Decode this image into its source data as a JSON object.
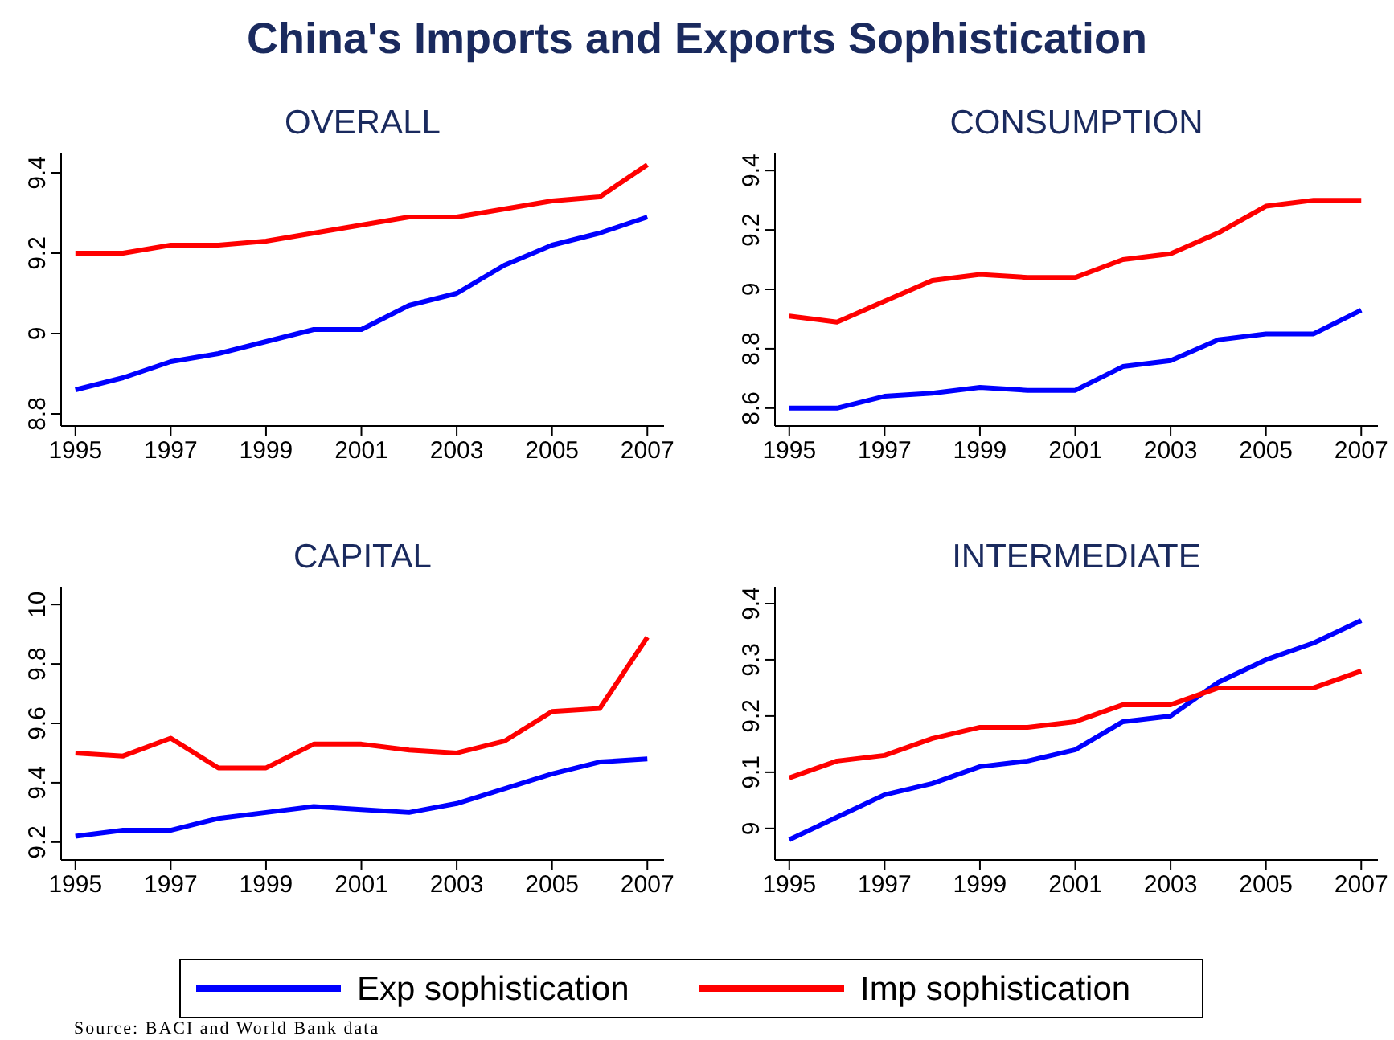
{
  "chart_data": [
    {
      "type": "line",
      "title": "OVERALL",
      "annotations": [
        "China's Imports and Exports Sophistication"
      ],
      "x": [
        1995,
        1996,
        1997,
        1998,
        1999,
        2000,
        2001,
        2002,
        2003,
        2004,
        2005,
        2006,
        2007
      ],
      "xlim": [
        1994.7,
        2007.35
      ],
      "xticks": [
        1995,
        1997,
        1999,
        2001,
        2003,
        2005,
        2007
      ],
      "ylim": [
        8.77,
        9.45
      ],
      "yticks": [
        {
          "value": 8.8,
          "label": "8.8"
        },
        {
          "value": 9,
          "label": "9"
        },
        {
          "value": 9.2,
          "label": "9.2"
        },
        {
          "value": 9.4,
          "label": "9.4"
        }
      ],
      "legend": "bottom",
      "series": [
        {
          "name": "Exp sophistication",
          "color": "#0000ff",
          "values": [
            8.86,
            8.89,
            8.93,
            8.95,
            8.98,
            9.01,
            9.01,
            9.07,
            9.1,
            9.17,
            9.22,
            9.25,
            9.29
          ]
        },
        {
          "name": "Imp sophistication",
          "color": "#ff0000",
          "values": [
            9.2,
            9.2,
            9.22,
            9.22,
            9.23,
            9.25,
            9.27,
            9.29,
            9.29,
            9.31,
            9.33,
            9.34,
            9.42
          ]
        }
      ]
    },
    {
      "type": "line",
      "title": "CONSUMPTION",
      "x": [
        1995,
        1996,
        1997,
        1998,
        1999,
        2000,
        2001,
        2002,
        2003,
        2004,
        2005,
        2006,
        2007
      ],
      "xlim": [
        1994.7,
        2007.35
      ],
      "xticks": [
        1995,
        1997,
        1999,
        2001,
        2003,
        2005,
        2007
      ],
      "ylim": [
        8.54,
        9.46
      ],
      "yticks": [
        {
          "value": 8.6,
          "label": "8.6"
        },
        {
          "value": 8.8,
          "label": "8.8"
        },
        {
          "value": 9,
          "label": "9"
        },
        {
          "value": 9.2,
          "label": "9.2"
        },
        {
          "value": 9.4,
          "label": "9.4"
        }
      ],
      "series": [
        {
          "color": "#0000ff",
          "values": [
            8.6,
            8.6,
            8.64,
            8.65,
            8.67,
            8.66,
            8.66,
            8.74,
            8.76,
            8.83,
            8.85,
            8.85,
            8.93
          ]
        },
        {
          "color": "#ff0000",
          "values": [
            8.91,
            8.89,
            8.96,
            9.03,
            9.05,
            9.04,
            9.04,
            9.1,
            9.12,
            9.19,
            9.28,
            9.3,
            9.3
          ]
        }
      ]
    },
    {
      "type": "line",
      "title": "CAPITAL",
      "x": [
        1995,
        1996,
        1997,
        1998,
        1999,
        2000,
        2001,
        2002,
        2003,
        2004,
        2005,
        2006,
        2007
      ],
      "xlim": [
        1994.7,
        2007.35
      ],
      "xticks": [
        1995,
        1997,
        1999,
        2001,
        2003,
        2005,
        2007
      ],
      "ylim": [
        9.14,
        10.06
      ],
      "yticks": [
        {
          "value": 9.2,
          "label": "9.2"
        },
        {
          "value": 9.4,
          "label": "9.4"
        },
        {
          "value": 9.6,
          "label": "9.6"
        },
        {
          "value": 9.8,
          "label": "9.8"
        },
        10
      ],
      "series": [
        {
          "color": "#0000ff",
          "values": [
            9.22,
            9.24,
            9.24,
            9.28,
            9.3,
            9.32,
            9.31,
            9.3,
            9.33,
            9.38,
            9.43,
            9.47,
            9.48
          ]
        },
        {
          "color": "#ff0000",
          "values": [
            9.5,
            9.49,
            9.55,
            9.45,
            9.45,
            9.53,
            9.53,
            9.51,
            9.5,
            9.54,
            9.64,
            9.65,
            9.89
          ]
        }
      ]
    },
    {
      "type": "line",
      "title": "INTERMEDIATE",
      "annotations": [
        "Source: BACI and World Bank data"
      ],
      "x": [
        1995,
        1996,
        1997,
        1998,
        1999,
        2000,
        2001,
        2002,
        2003,
        2004,
        2005,
        2006,
        2007
      ],
      "xlim": [
        1994.7,
        2007.35
      ],
      "xticks": [
        1995,
        1997,
        1999,
        2001,
        2003,
        2005,
        2007
      ],
      "ylim": [
        8.944,
        9.43
      ],
      "yticks": [
        {
          "value": 9,
          "label": "9"
        },
        {
          "value": 9.1,
          "label": "9.1"
        },
        {
          "value": 9.2,
          "label": "9.2"
        },
        {
          "value": 9.3,
          "label": "9.3"
        },
        {
          "value": 9.4,
          "label": "9.4"
        }
      ],
      "series": [
        {
          "color": "#0000ff",
          "values": [
            8.98,
            9.02,
            9.06,
            9.08,
            9.11,
            9.12,
            9.14,
            9.19,
            9.2,
            9.26,
            9.3,
            9.33,
            9.37
          ]
        },
        {
          "color": "#ff0000",
          "values": [
            9.09,
            9.12,
            9.13,
            9.16,
            9.18,
            9.18,
            9.19,
            9.22,
            9.22,
            9.25,
            9.25,
            9.25,
            9.28
          ]
        }
      ]
    }
  ]
}
